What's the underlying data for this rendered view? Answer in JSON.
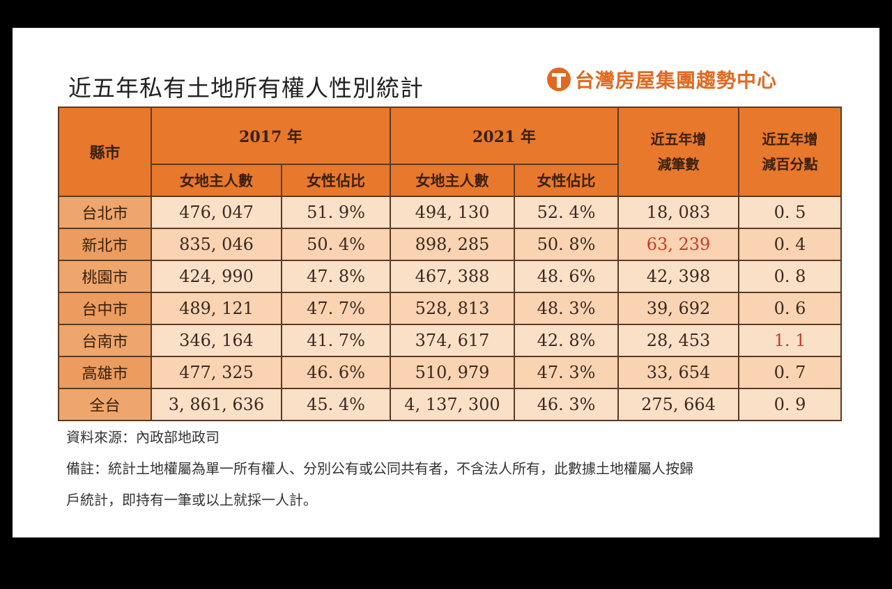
{
  "title": "近五年私有土地所有權人性別統計",
  "logo": "台灣房屋集團趨勢中心",
  "header": {
    "city": "縣市",
    "year1": "2017 年",
    "year2": "2021 年",
    "change_count": [
      "近五年增",
      "減筆數"
    ],
    "change_pct": [
      "近五年增",
      "減百分點"
    ],
    "sub_count": "女地主人數",
    "sub_ratio": "女性佔比"
  },
  "rows": [
    {
      "city": "台北市",
      "c2017": "476, 047",
      "r2017": "51. 9%",
      "c2021": "494, 130",
      "r2021": "52. 4%",
      "delta": "18, 083",
      "pts": "0. 5"
    },
    {
      "city": "新北市",
      "c2017": "835, 046",
      "r2017": "50. 4%",
      "c2021": "898, 285",
      "r2021": "50. 8%",
      "delta": "63, 239",
      "pts": "0. 4"
    },
    {
      "city": "桃園市",
      "c2017": "424, 990",
      "r2017": "47. 8%",
      "c2021": "467, 388",
      "r2021": "48. 6%",
      "delta": "42, 398",
      "pts": "0. 8"
    },
    {
      "city": "台中市",
      "c2017": "489, 121",
      "r2017": "47. 7%",
      "c2021": "528, 813",
      "r2021": "48. 3%",
      "delta": "39, 692",
      "pts": "0. 6"
    },
    {
      "city": "台南市",
      "c2017": "346, 164",
      "r2017": "41. 7%",
      "c2021": "374, 617",
      "r2021": "42. 8%",
      "delta": "28, 453",
      "pts": "1. 1"
    },
    {
      "city": "高雄市",
      "c2017": "477, 325",
      "r2017": "46. 6%",
      "c2021": "510, 979",
      "r2021": "47. 3%",
      "delta": "33, 654",
      "pts": "0. 7"
    },
    {
      "city": "全台",
      "c2017": "3, 861, 636",
      "r2017": "45. 4%",
      "c2021": "4, 137, 300",
      "r2021": "46. 3%",
      "delta": "275, 664",
      "pts": "0. 9"
    }
  ],
  "highlight_color": "#c93a2a",
  "source": "資料來源：內政部地政司",
  "note_line1": "備註：統計土地權屬為單一所有權人、分別公有或公同共有者，不含法人所有，此數據土地權屬人按歸",
  "note_line2": "戶統計，即持有一筆或以上就採一人計。"
}
